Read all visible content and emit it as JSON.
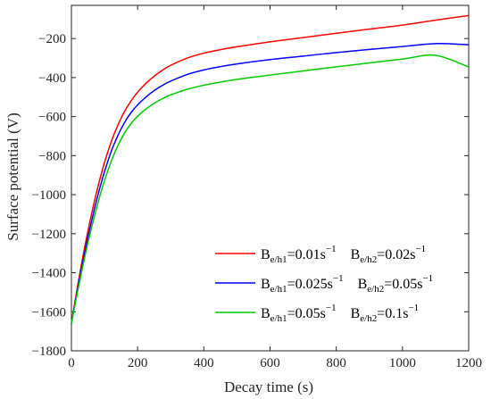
{
  "chart_data": {
    "type": "line",
    "title": "",
    "xlabel": "Decay time (s)",
    "ylabel": "Surface potential (V)",
    "xlim": [
      0,
      1200
    ],
    "ylim": [
      -1800,
      -30
    ],
    "xticks": [
      0,
      200,
      400,
      600,
      800,
      1000,
      1200
    ],
    "xtick_labels": [
      "0",
      "200",
      "400",
      "600",
      "800",
      "1000",
      "1200"
    ],
    "yticks": [
      -1800,
      -1600,
      -1400,
      -1200,
      -1000,
      -800,
      -600,
      -400,
      -200
    ],
    "ytick_labels": [
      "−1800",
      "−1600",
      "−1400",
      "−1200",
      "−1000",
      "−800",
      "−600",
      "−400",
      "−200"
    ],
    "grid": false,
    "legend_position": "bottom-right",
    "x": [
      0,
      10,
      20,
      30,
      40,
      50,
      60,
      70,
      80,
      90,
      100,
      120,
      140,
      160,
      180,
      200,
      225,
      250,
      275,
      300,
      350,
      400,
      450,
      500,
      600,
      700,
      800,
      900,
      1000,
      1100,
      1200
    ],
    "series": [
      {
        "name": "B_e/h1=0.01s^-1 B_e/h2=0.02s^-1",
        "label": {
          "b1_sub": "e/h1",
          "b1_val": "=0.01s",
          "b2_sub": "e/h2",
          "b2_val": "=0.02s",
          "sup": "−1"
        },
        "color": "#ff0000",
        "values": [
          -1660,
          -1555,
          -1455,
          -1360,
          -1270,
          -1185,
          -1105,
          -1030,
          -960,
          -895,
          -835,
          -730,
          -645,
          -575,
          -520,
          -475,
          -430,
          -393,
          -362,
          -337,
          -300,
          -275,
          -257,
          -242,
          -217,
          -195,
          -173,
          -152,
          -131,
          -106,
          -82
        ]
      },
      {
        "name": "B_e/h1=0.025s^-1 B_e/h2=0.05s^-1",
        "label": {
          "b1_sub": "e/h1",
          "b1_val": "=0.025s",
          "b2_sub": "e/h2",
          "b2_val": "=0.05s",
          "sup": "−1"
        },
        "color": "#0000ff",
        "values": [
          -1660,
          -1565,
          -1472,
          -1383,
          -1298,
          -1218,
          -1142,
          -1070,
          -1003,
          -940,
          -882,
          -780,
          -698,
          -632,
          -580,
          -540,
          -500,
          -467,
          -440,
          -418,
          -384,
          -361,
          -344,
          -330,
          -308,
          -290,
          -272,
          -256,
          -241,
          -226,
          -232
        ]
      },
      {
        "name": "B_e/h1=0.05s^-1 B_e/h2=0.1s^-1",
        "label": {
          "b1_sub": "e/h1",
          "b1_val": "=0.05s",
          "b2_sub": "e/h2",
          "b2_val": "=0.1s",
          "sup": "−1"
        },
        "color": "#00cc00",
        "values": [
          -1660,
          -1572,
          -1485,
          -1402,
          -1322,
          -1246,
          -1175,
          -1107,
          -1043,
          -983,
          -928,
          -830,
          -750,
          -686,
          -636,
          -598,
          -561,
          -532,
          -508,
          -489,
          -460,
          -439,
          -423,
          -409,
          -387,
          -366,
          -345,
          -325,
          -305,
          -286,
          -346
        ]
      }
    ]
  }
}
